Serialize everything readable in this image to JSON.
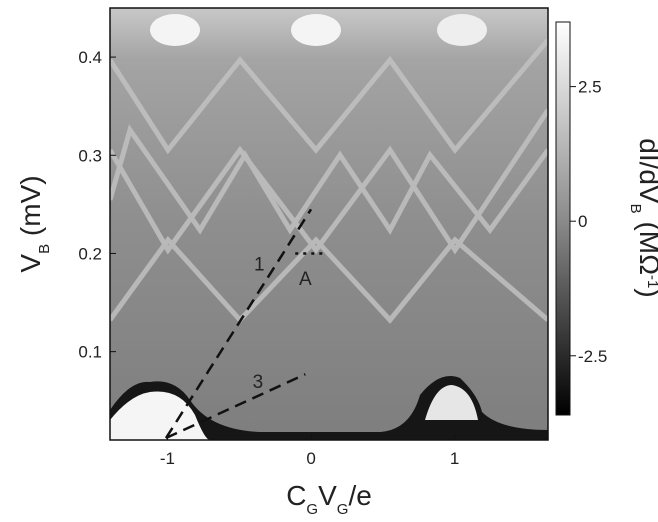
{
  "chart_data": {
    "type": "heatmap",
    "xlabel": [
      "C",
      "G",
      "V",
      "G",
      "/e"
    ],
    "ylabel": [
      "V",
      "B",
      " (mV)"
    ],
    "colorbar_label": [
      "dI/dV",
      "B",
      " (MΩ",
      "-1",
      ")"
    ],
    "xlim": [
      -1.4,
      1.65
    ],
    "ylim": [
      0.01,
      0.45
    ],
    "xticks": [
      -1,
      0,
      1
    ],
    "yticks": [
      0.1,
      0.2,
      0.3,
      0.4
    ],
    "clim": [
      -3.6,
      3.7
    ],
    "cticks": [
      -2.5,
      0,
      2.5
    ],
    "lines": [
      {
        "x": [
          -1.01,
          0.0
        ],
        "y": [
          0.012,
          0.245
        ]
      },
      {
        "x": [
          -1.01,
          -0.04
        ],
        "y": [
          0.012,
          0.077
        ]
      },
      {
        "x": [
          -0.11,
          0.08
        ],
        "y": [
          0.2,
          0.2
        ]
      }
    ],
    "annotations": [
      {
        "text": "1",
        "x": -0.36,
        "y": 0.19
      },
      {
        "text": "3",
        "x": -0.37,
        "y": 0.07
      },
      {
        "text": "A",
        "x": -0.04,
        "y": 0.175
      }
    ]
  }
}
